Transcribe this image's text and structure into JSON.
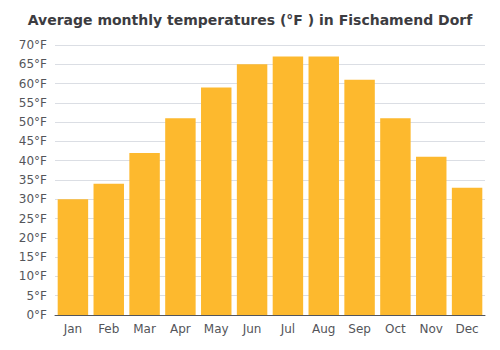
{
  "chart_data": {
    "type": "bar",
    "title": "Average monthly temperatures (°F ) in Fischamend Dorf",
    "categories": [
      "Jan",
      "Feb",
      "Mar",
      "Apr",
      "May",
      "Jun",
      "Jul",
      "Aug",
      "Sep",
      "Oct",
      "Nov",
      "Dec"
    ],
    "values": [
      30,
      34,
      42,
      51,
      59,
      65,
      67,
      67,
      61,
      51,
      41,
      33
    ],
    "color": "#FDB92E",
    "ylim": [
      0,
      70
    ],
    "yticks": [
      {
        "value": 0,
        "label": "0°F"
      },
      {
        "value": 5,
        "label": "5°F"
      },
      {
        "value": 10,
        "label": "10°F"
      },
      {
        "value": 15,
        "label": "15°F"
      },
      {
        "value": 20,
        "label": "20°F"
      },
      {
        "value": 25,
        "label": "25°F"
      },
      {
        "value": 30,
        "label": "30°F"
      },
      {
        "value": 35,
        "label": "35°F"
      },
      {
        "value": 40,
        "label": "40°F"
      },
      {
        "value": 45,
        "label": "45°F"
      },
      {
        "value": 50,
        "label": "50°F"
      },
      {
        "value": 55,
        "label": "55°F"
      },
      {
        "value": 60,
        "label": "60°F"
      },
      {
        "value": 65,
        "label": "65°F"
      },
      {
        "value": 70,
        "label": "70°F"
      }
    ],
    "grid": true
  }
}
